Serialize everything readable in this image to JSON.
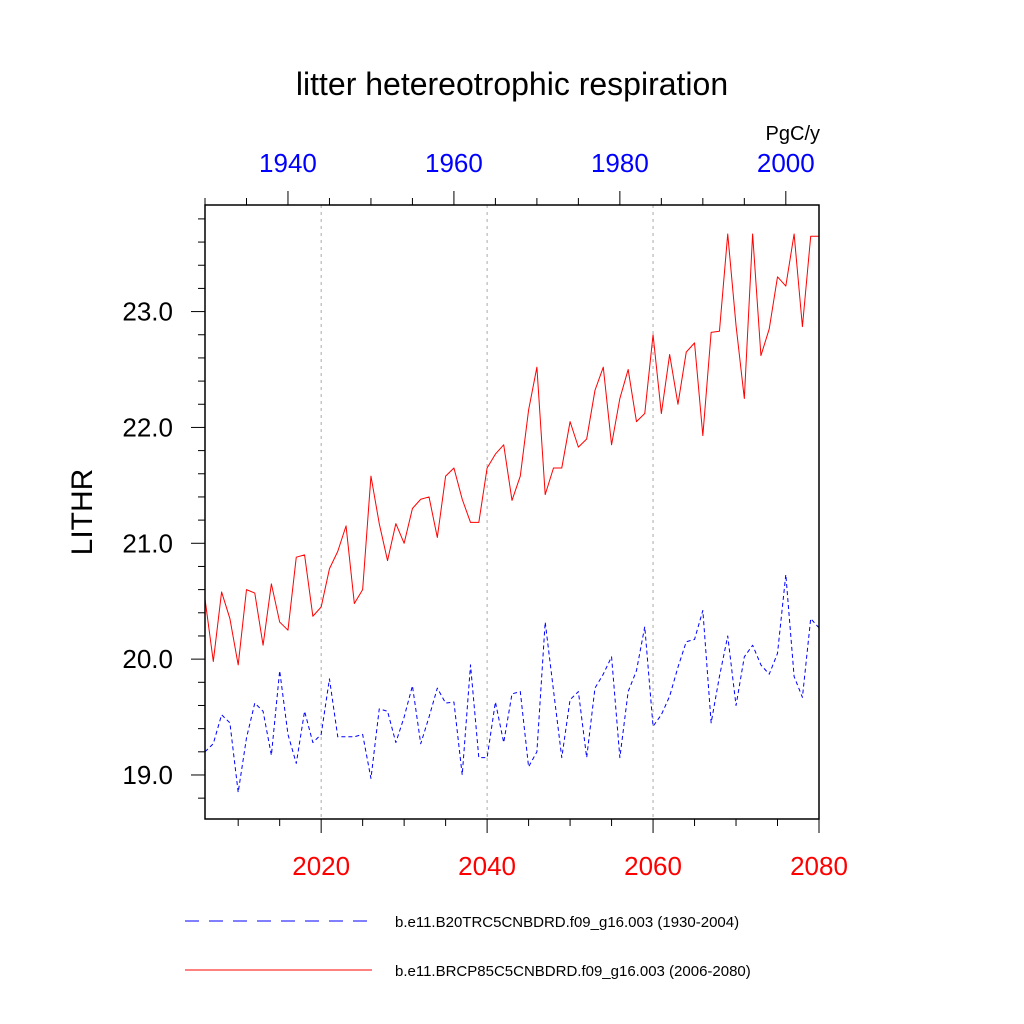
{
  "chart_data": {
    "type": "line",
    "title": "litter hetereotrophic respiration",
    "units": "PgC/y",
    "ylabel": "LITHR",
    "ylim": [
      18.62,
      23.92
    ],
    "yticks": [
      19.0,
      20.0,
      21.0,
      22.0,
      23.0
    ],
    "ytick_labels": [
      "19.0",
      "20.0",
      "21.0",
      "22.0",
      "23.0"
    ],
    "bottom_axis": {
      "range": [
        2006,
        2080
      ],
      "ticks": [
        2020,
        2040,
        2060,
        2080
      ],
      "labels": [
        "2020",
        "2040",
        "2060",
        "2080"
      ],
      "color": "#ff0000"
    },
    "top_axis": {
      "range": [
        1930,
        2004
      ],
      "ticks": [
        1940,
        1960,
        1980,
        2000
      ],
      "labels": [
        "1940",
        "1960",
        "1980",
        "2000"
      ],
      "color": "#0000ff"
    },
    "grid": "vertical dotted at major bottom ticks",
    "series": [
      {
        "name": "b.e11.B20TRC5CNBDRD.f09_g16.003 (1930-2004)",
        "color": "#0000ff",
        "dash": "dashed",
        "x_start": 2006,
        "values": [
          19.2,
          19.27,
          19.52,
          19.45,
          18.85,
          19.32,
          19.62,
          19.55,
          19.17,
          19.9,
          19.35,
          19.1,
          19.55,
          19.28,
          19.35,
          19.83,
          19.33,
          19.33,
          19.33,
          19.35,
          18.97,
          19.57,
          19.55,
          19.28,
          19.5,
          19.77,
          19.27,
          19.5,
          19.75,
          19.62,
          19.63,
          19.0,
          19.95,
          19.15,
          19.15,
          19.63,
          19.28,
          19.7,
          19.72,
          19.07,
          19.2,
          20.32,
          19.73,
          19.15,
          19.65,
          19.72,
          19.15,
          19.75,
          19.87,
          20.02,
          19.15,
          19.72,
          19.9,
          20.28,
          19.42,
          19.52,
          19.68,
          19.93,
          20.15,
          20.17,
          20.42,
          19.45,
          19.85,
          20.2,
          19.6,
          20.02,
          20.12,
          19.95,
          19.87,
          20.05,
          20.73,
          19.85,
          19.67,
          20.35,
          20.27
        ]
      },
      {
        "name": "b.e11.BRCP85C5CNBDRD.f09_g16.003 (2006-2080)",
        "color": "#ff0000",
        "dash": "solid",
        "x_start": 2006,
        "values": [
          20.52,
          19.98,
          20.58,
          20.35,
          19.95,
          20.6,
          20.57,
          20.12,
          20.65,
          20.32,
          20.25,
          20.88,
          20.9,
          20.37,
          20.45,
          20.78,
          20.93,
          21.15,
          20.48,
          20.6,
          21.58,
          21.17,
          20.85,
          21.17,
          21.0,
          21.3,
          21.38,
          21.4,
          21.05,
          21.58,
          21.65,
          21.38,
          21.18,
          21.18,
          21.65,
          21.77,
          21.85,
          21.37,
          21.58,
          22.15,
          22.52,
          21.42,
          21.65,
          21.65,
          22.05,
          21.83,
          21.9,
          22.32,
          22.52,
          21.85,
          22.25,
          22.5,
          22.05,
          22.12,
          22.8,
          22.12,
          22.63,
          22.2,
          22.65,
          22.73,
          21.93,
          22.82,
          22.83,
          23.67,
          22.88,
          22.25,
          23.67,
          22.62,
          22.85,
          23.3,
          23.22,
          23.67,
          22.87,
          23.65,
          23.65
        ]
      }
    ]
  }
}
